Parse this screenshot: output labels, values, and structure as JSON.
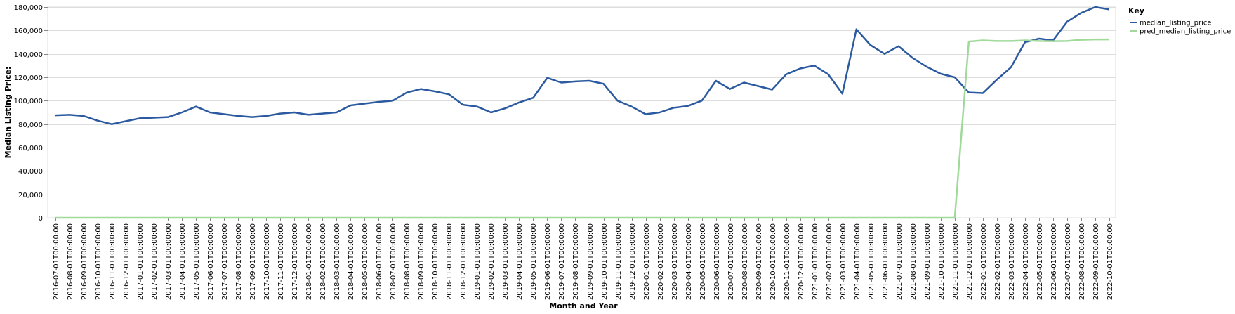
{
  "chart_data": {
    "type": "line",
    "xlabel": "Month and Year",
    "ylabel": "Median Listing Price:",
    "ylim": [
      0,
      180000
    ],
    "yticks": [
      0,
      20000,
      40000,
      60000,
      80000,
      100000,
      120000,
      140000,
      160000,
      180000
    ],
    "ytick_labels": [
      "0",
      "20,000",
      "40,000",
      "60,000",
      "80,000",
      "100,000",
      "120,000",
      "140,000",
      "160,000",
      "180,000"
    ],
    "grid": true,
    "legend": {
      "title": "Key",
      "placement": "top-right-outside"
    },
    "x": [
      "2016-07-01T00:00:00",
      "2016-08-01T00:00:00",
      "2016-09-01T00:00:00",
      "2016-10-01T00:00:00",
      "2016-11-01T00:00:00",
      "2016-12-01T00:00:00",
      "2017-01-01T00:00:00",
      "2017-02-01T00:00:00",
      "2017-03-01T00:00:00",
      "2017-04-01T00:00:00",
      "2017-05-01T00:00:00",
      "2017-06-01T00:00:00",
      "2017-07-01T00:00:00",
      "2017-08-01T00:00:00",
      "2017-09-01T00:00:00",
      "2017-10-01T00:00:00",
      "2017-11-01T00:00:00",
      "2017-12-01T00:00:00",
      "2018-01-01T00:00:00",
      "2018-02-01T00:00:00",
      "2018-03-01T00:00:00",
      "2018-04-01T00:00:00",
      "2018-05-01T00:00:00",
      "2018-06-01T00:00:00",
      "2018-07-01T00:00:00",
      "2018-08-01T00:00:00",
      "2018-09-01T00:00:00",
      "2018-10-01T00:00:00",
      "2018-11-01T00:00:00",
      "2018-12-01T00:00:00",
      "2019-01-01T00:00:00",
      "2019-02-01T00:00:00",
      "2019-03-01T00:00:00",
      "2019-04-01T00:00:00",
      "2019-05-01T00:00:00",
      "2019-06-01T00:00:00",
      "2019-07-01T00:00:00",
      "2019-08-01T00:00:00",
      "2019-09-01T00:00:00",
      "2019-10-01T00:00:00",
      "2019-11-01T00:00:00",
      "2019-12-01T00:00:00",
      "2020-01-01T00:00:00",
      "2020-02-01T00:00:00",
      "2020-03-01T00:00:00",
      "2020-04-01T00:00:00",
      "2020-05-01T00:00:00",
      "2020-06-01T00:00:00",
      "2020-07-01T00:00:00",
      "2020-08-01T00:00:00",
      "2020-09-01T00:00:00",
      "2020-10-01T00:00:00",
      "2020-11-01T00:00:00",
      "2020-12-01T00:00:00",
      "2021-01-01T00:00:00",
      "2021-02-01T00:00:00",
      "2021-03-01T00:00:00",
      "2021-04-01T00:00:00",
      "2021-05-01T00:00:00",
      "2021-06-01T00:00:00",
      "2021-07-01T00:00:00",
      "2021-08-01T00:00:00",
      "2021-09-01T00:00:00",
      "2021-10-01T00:00:00",
      "2021-11-01T00:00:00",
      "2021-12-01T00:00:00",
      "2022-01-01T00:00:00",
      "2022-02-01T00:00:00",
      "2022-03-01T00:00:00",
      "2022-04-01T00:00:00",
      "2022-05-01T00:00:00",
      "2022-06-01T00:00:00",
      "2022-07-01T00:00:00",
      "2022-08-01T00:00:00",
      "2022-09-01T00:00:00",
      "2022-10-01T00:00:00"
    ],
    "series": [
      {
        "name": "median_listing_price",
        "color": "#2b5aa0",
        "values": [
          87500,
          88000,
          87000,
          83000,
          80000,
          82500,
          85000,
          85500,
          86000,
          90000,
          95000,
          90000,
          88500,
          87000,
          86000,
          87000,
          89000,
          90000,
          88000,
          89000,
          90000,
          96000,
          97500,
          99000,
          100000,
          107000,
          110000,
          108000,
          105500,
          96500,
          95000,
          90000,
          93500,
          98500,
          102500,
          119500,
          115500,
          116500,
          117000,
          114500,
          100000,
          95000,
          88500,
          90000,
          94000,
          95500,
          100000,
          117000,
          110000,
          115500,
          112500,
          109500,
          122500,
          127500,
          130000,
          122500,
          106000,
          161000,
          147500,
          140000,
          146500,
          136500,
          129000,
          123000,
          120000,
          107000,
          106500,
          118000,
          128500,
          150000,
          153000,
          151500,
          167500,
          175000,
          180000,
          178000
        ]
      },
      {
        "name": "pred_median_listing_price",
        "color": "#a1d99b",
        "values": [
          0,
          0,
          0,
          0,
          0,
          0,
          0,
          0,
          0,
          0,
          0,
          0,
          0,
          0,
          0,
          0,
          0,
          0,
          0,
          0,
          0,
          0,
          0,
          0,
          0,
          0,
          0,
          0,
          0,
          0,
          0,
          0,
          0,
          0,
          0,
          0,
          0,
          0,
          0,
          0,
          0,
          0,
          0,
          0,
          0,
          0,
          0,
          0,
          0,
          0,
          0,
          0,
          0,
          0,
          0,
          0,
          0,
          0,
          0,
          0,
          0,
          0,
          0,
          0,
          0,
          150500,
          151500,
          151000,
          151000,
          151500,
          151000,
          150800,
          151000,
          152000,
          152300,
          152300
        ]
      }
    ]
  }
}
